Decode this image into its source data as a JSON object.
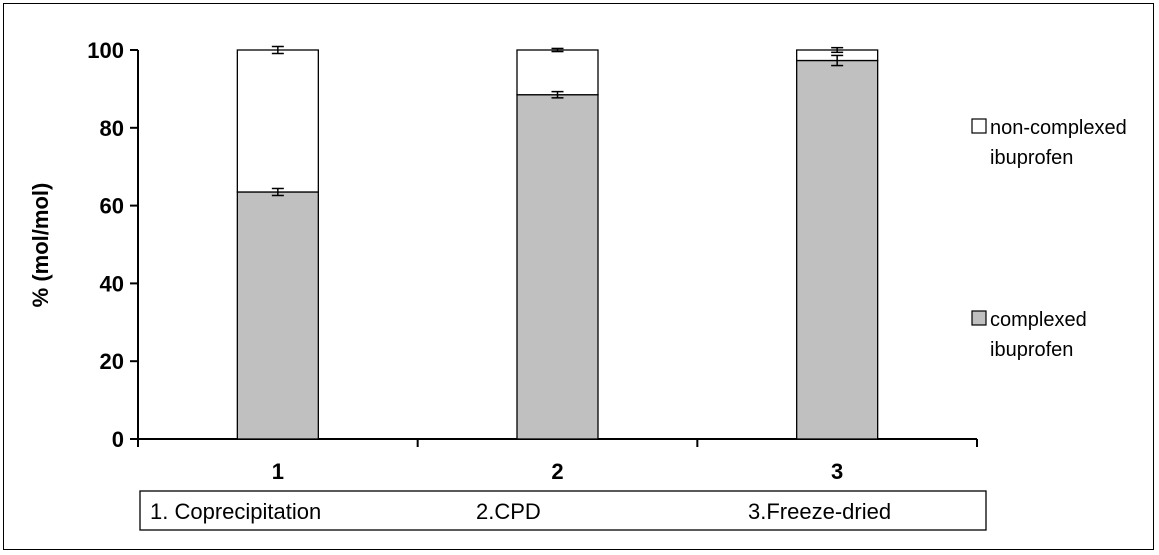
{
  "chart_data": {
    "type": "bar",
    "stacked": true,
    "categories": [
      "1",
      "2",
      "3"
    ],
    "ylabel": "% (mol/mol)",
    "ylim": [
      0,
      100
    ],
    "yticks": [
      "0",
      "20",
      "40",
      "60",
      "80",
      "100"
    ],
    "series": [
      {
        "name": "complexed ibuprofen",
        "color": "#c0c0c0",
        "values": [
          63.5,
          88.5,
          97.3
        ],
        "errors": [
          0.9,
          0.8,
          1.3
        ]
      },
      {
        "name": "non-complexed ibuprofen",
        "color": "#ffffff",
        "values": [
          36.5,
          11.5,
          2.7
        ],
        "errors": [
          0.9,
          0.4,
          0.6
        ]
      }
    ],
    "legend": [
      {
        "lines": [
          "non-complexed",
          "ibuprofen"
        ],
        "color": "#ffffff"
      },
      {
        "lines": [
          "complexed",
          "ibuprofen"
        ],
        "color": "#c0c0c0"
      }
    ],
    "legend_position": "right",
    "caption_items": [
      "1. Coprecipitation",
      "2.CPD",
      "3.Freeze-dried"
    ]
  }
}
